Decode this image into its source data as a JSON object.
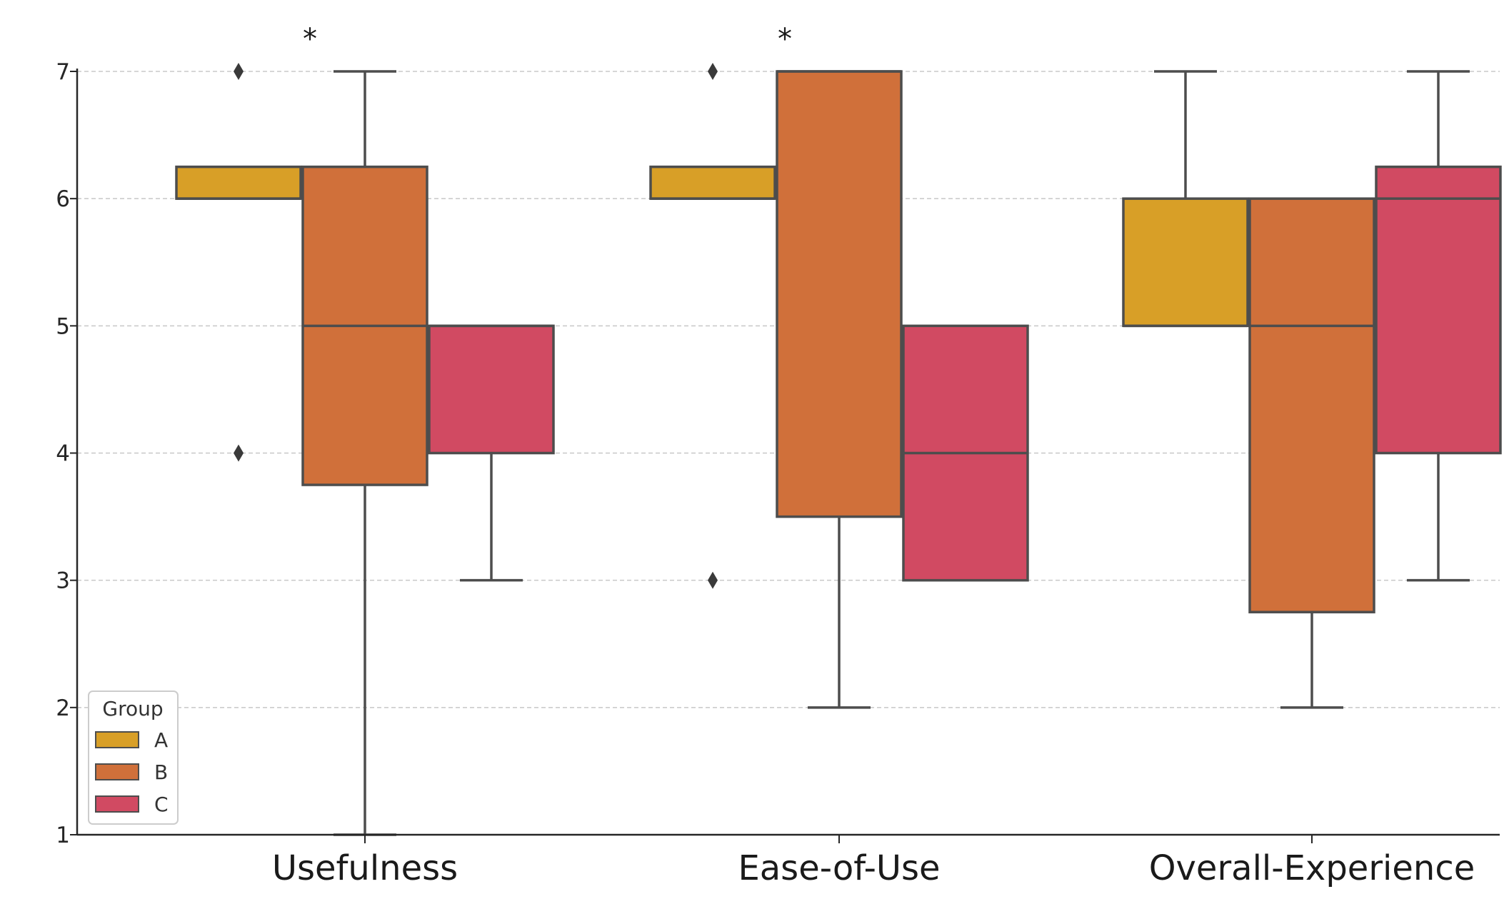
{
  "chart_data": {
    "type": "box",
    "title": "",
    "xlabel": "",
    "ylabel": "",
    "ylim": [
      1,
      7
    ],
    "yticks": [
      "1",
      "2",
      "3",
      "4",
      "5",
      "6",
      "7"
    ],
    "grid": true,
    "categories": [
      "Usefulness",
      "Ease-of-Use",
      "Overall-Experience"
    ],
    "legend": {
      "title": "Group",
      "placement": "bottom-left"
    },
    "series": [
      {
        "name": "A",
        "color": "#d89f27",
        "boxes": [
          {
            "whislo": 6,
            "q1": 6,
            "med": 6,
            "q3": 6.25,
            "whishi": 6.25,
            "fliers": [
              7,
              4
            ]
          },
          {
            "whislo": 6,
            "q1": 6,
            "med": 6,
            "q3": 6.25,
            "whishi": 6.25,
            "fliers": [
              7,
              3
            ]
          },
          {
            "whislo": 5,
            "q1": 5,
            "med": 5,
            "q3": 6,
            "whishi": 7,
            "fliers": []
          }
        ]
      },
      {
        "name": "B",
        "color": "#d0703a",
        "boxes": [
          {
            "whislo": 1,
            "q1": 3.75,
            "med": 5,
            "q3": 6.25,
            "whishi": 7,
            "fliers": []
          },
          {
            "whislo": 2,
            "q1": 3.5,
            "med": 7,
            "q3": 7,
            "whishi": 7,
            "fliers": []
          },
          {
            "whislo": 2,
            "q1": 2.75,
            "med": 5,
            "q3": 6,
            "whishi": 6,
            "fliers": []
          }
        ]
      },
      {
        "name": "C",
        "color": "#d14a62",
        "boxes": [
          {
            "whislo": 3,
            "q1": 4,
            "med": 5,
            "q3": 5,
            "whishi": 5,
            "fliers": []
          },
          {
            "whislo": 3,
            "q1": 3,
            "med": 4,
            "q3": 5,
            "whishi": 5,
            "fliers": []
          },
          {
            "whislo": 3,
            "q1": 4,
            "med": 6,
            "q3": 6.25,
            "whishi": 7,
            "fliers": []
          }
        ]
      }
    ],
    "annotations": [
      {
        "text": "*",
        "category": "Usefulness"
      },
      {
        "text": "*",
        "category": "Ease-of-Use"
      }
    ]
  }
}
